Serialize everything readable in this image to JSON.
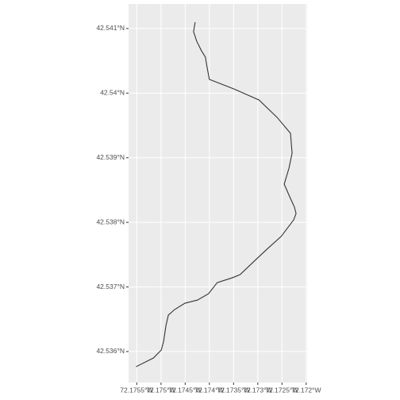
{
  "chart_data": {
    "type": "line",
    "x": [
      -72.174295,
      -72.174327,
      -72.174262,
      -72.174164,
      -72.174083,
      -72.17405,
      -72.174001,
      -72.173496,
      -72.172975,
      -72.1726,
      -72.172324,
      -72.172291,
      -72.172356,
      -72.172454,
      -72.17234,
      -72.172242,
      -72.172209,
      -72.172258,
      -72.172519,
      -72.172812,
      -72.173056,
      -72.173366,
      -72.173529,
      -72.173838,
      -72.174018,
      -72.174246,
      -72.174506,
      -72.174718,
      -72.174848,
      -72.174897,
      -72.174946,
      -72.174995,
      -72.175158,
      -72.175516
    ],
    "series": [
      {
        "color": "#333333",
        "values": [
          42.541098,
          42.540951,
          42.540803,
          42.540656,
          42.540558,
          42.54041,
          42.540213,
          42.540066,
          42.539894,
          42.539624,
          42.539378,
          42.539071,
          42.538837,
          42.538591,
          42.538395,
          42.538235,
          42.538137,
          42.538038,
          42.53778,
          42.537583,
          42.537411,
          42.53719,
          42.537141,
          42.537067,
          42.536895,
          42.536797,
          42.536748,
          42.53665,
          42.536563,
          42.536403,
          42.536157,
          42.536022,
          42.535899,
          42.535765
        ]
      }
    ],
    "xlim": [
      -72.17567,
      -72.17198
    ],
    "ylim": [
      42.53552,
      42.54138
    ],
    "xticks": [
      {
        "value": -72.1755,
        "label": "72.1755°W"
      },
      {
        "value": -72.175,
        "label": "72.175°W"
      },
      {
        "value": -72.1745,
        "label": "72.1745°W"
      },
      {
        "value": -72.174,
        "label": "72.174°W"
      },
      {
        "value": -72.1735,
        "label": "72.1735°W"
      },
      {
        "value": -72.173,
        "label": "72.173°W"
      },
      {
        "value": -72.1725,
        "label": "72.1725°W"
      },
      {
        "value": -72.172,
        "label": "72.172°W"
      }
    ],
    "yticks": [
      {
        "value": 42.536,
        "label": "42.536°N"
      },
      {
        "value": 42.537,
        "label": "42.537°N"
      },
      {
        "value": 42.538,
        "label": "42.538°N"
      },
      {
        "value": 42.539,
        "label": "42.539°N"
      },
      {
        "value": 42.54,
        "label": "42.54°N"
      },
      {
        "value": 42.541,
        "label": "42.541°N"
      }
    ],
    "grid": true
  }
}
